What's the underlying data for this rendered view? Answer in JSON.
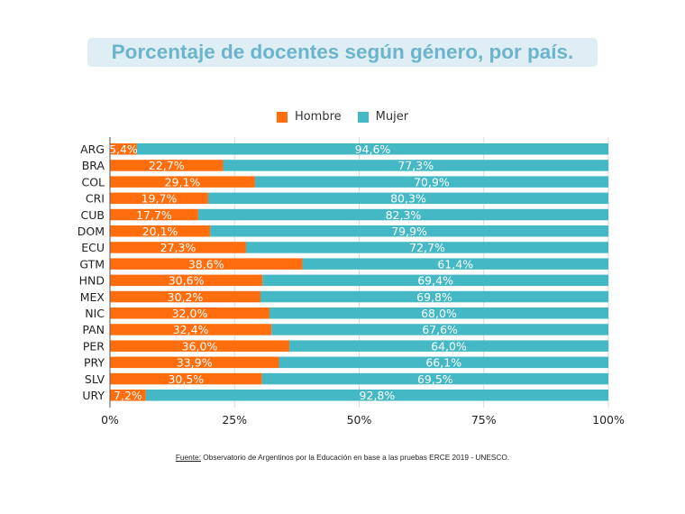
{
  "chart_data": {
    "type": "bar",
    "orientation": "horizontal",
    "stacked": true,
    "title": "Porcentaje de docentes según género, por país.",
    "categories": [
      "ARG",
      "BRA",
      "COL",
      "CRI",
      "CUB",
      "DOM",
      "ECU",
      "GTM",
      "HND",
      "MEX",
      "NIC",
      "PAN",
      "PER",
      "PRY",
      "SLV",
      "URY"
    ],
    "series": [
      {
        "name": "Hombre",
        "color": "#ff6d0d",
        "values": [
          5.4,
          22.7,
          29.1,
          19.7,
          17.7,
          20.1,
          27.3,
          38.6,
          30.6,
          30.2,
          32.0,
          32.4,
          36.0,
          33.9,
          30.5,
          7.2
        ],
        "labels": [
          "5,4%",
          "22,7%",
          "29,1%",
          "19,7%",
          "17,7%",
          "20,1%",
          "27,3%",
          "38,6%",
          "30,6%",
          "30,2%",
          "32,0%",
          "32,4%",
          "36,0%",
          "33,9%",
          "30,5%",
          "7,2%"
        ]
      },
      {
        "name": "Mujer",
        "color": "#44b9c5",
        "values": [
          94.6,
          77.3,
          70.9,
          80.3,
          82.3,
          79.9,
          72.7,
          61.4,
          69.4,
          69.8,
          68.0,
          67.6,
          64.0,
          66.1,
          69.5,
          92.8
        ],
        "labels": [
          "94,6%",
          "77,3%",
          "70,9%",
          "80,3%",
          "82,3%",
          "79,9%",
          "72,7%",
          "61,4%",
          "69,4%",
          "69,8%",
          "68,0%",
          "67,6%",
          "64,0%",
          "66,1%",
          "69,5%",
          "92,8%"
        ]
      }
    ],
    "xlim": [
      0,
      100
    ],
    "xticks": [
      "0%",
      "25%",
      "50%",
      "75%",
      "100%"
    ],
    "xtick_values": [
      0,
      25,
      50,
      75,
      100
    ],
    "grid": true,
    "legend_position": "top-center"
  },
  "source": {
    "label": "Fuente:",
    "text": " Observatorio de Argentinos por la Educación en base a las pruebas ERCE 2019 - UNESCO."
  }
}
